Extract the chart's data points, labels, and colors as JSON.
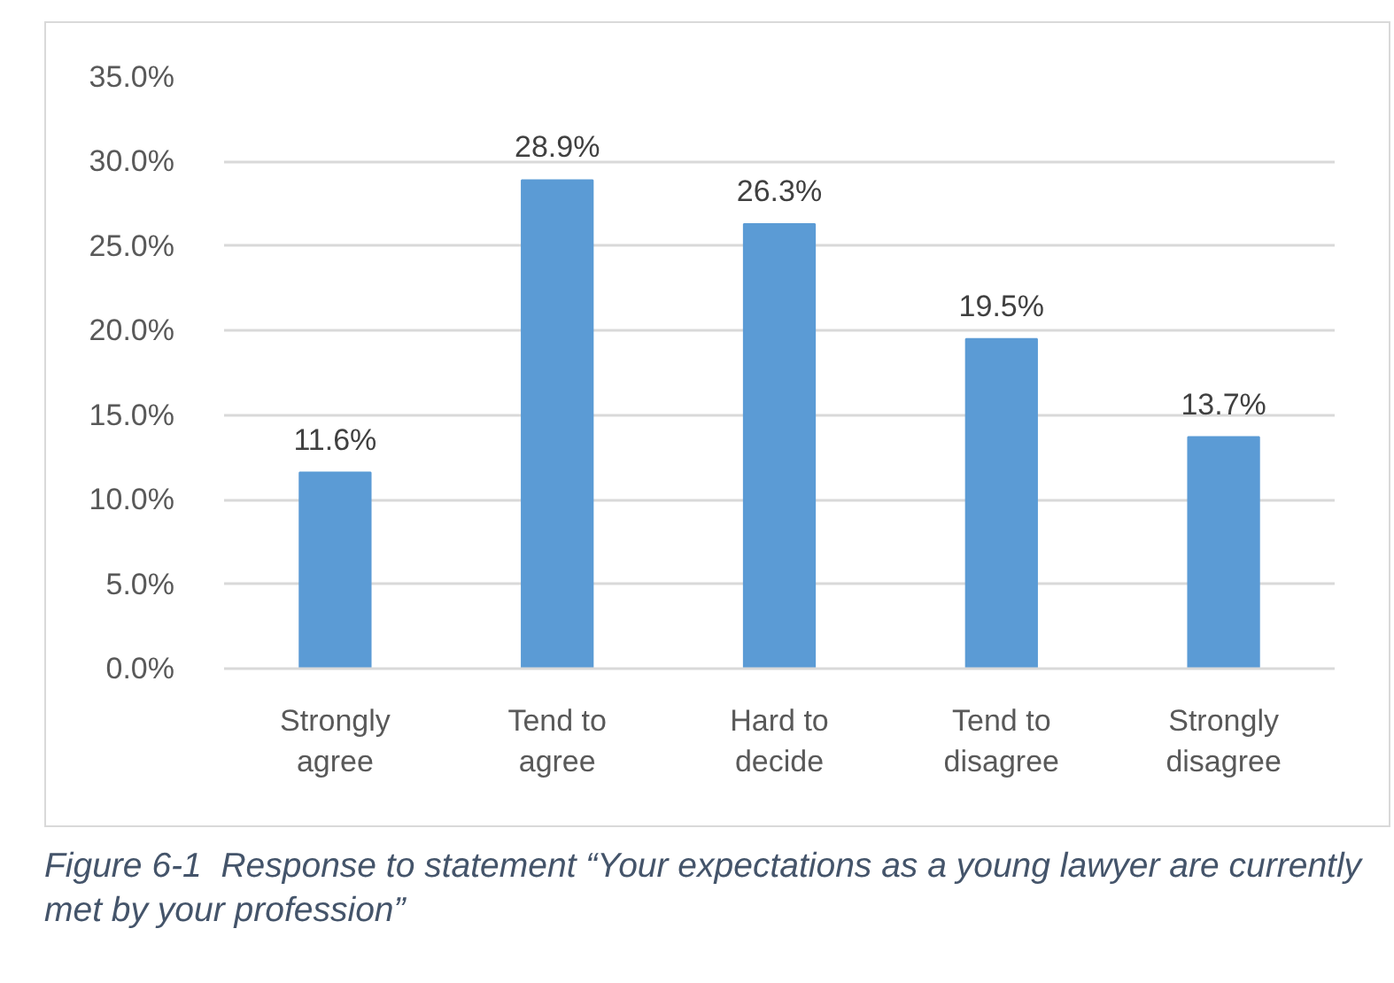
{
  "chart_data": {
    "type": "bar",
    "categories": [
      "Strongly agree",
      "Tend to agree",
      "Hard to decide",
      "Tend to disagree",
      "Strongly disagree"
    ],
    "values": [
      11.6,
      28.9,
      26.3,
      19.5,
      13.7
    ],
    "color": "#5b9bd5",
    "value_labels": [
      "11.6%",
      "28.9%",
      "26.3%",
      "19.5%",
      "13.7%"
    ],
    "ylim": [
      0,
      35
    ],
    "yticks": [
      {
        "value": 0,
        "label": "0.0%"
      },
      {
        "value": 5,
        "label": "5.0%"
      },
      {
        "value": 10,
        "label": "10.0%"
      },
      {
        "value": 15,
        "label": "15.0%"
      },
      {
        "value": 20,
        "label": "20.0%"
      },
      {
        "value": 25,
        "label": "25.0%"
      },
      {
        "value": 30,
        "label": "30.0%"
      },
      {
        "value": 35,
        "label": "35.0%"
      }
    ],
    "grid": "y",
    "annotations": [
      "Figure 6-1  Response to statement “Your expectations as a young lawyer are currently met by your profession”"
    ]
  }
}
